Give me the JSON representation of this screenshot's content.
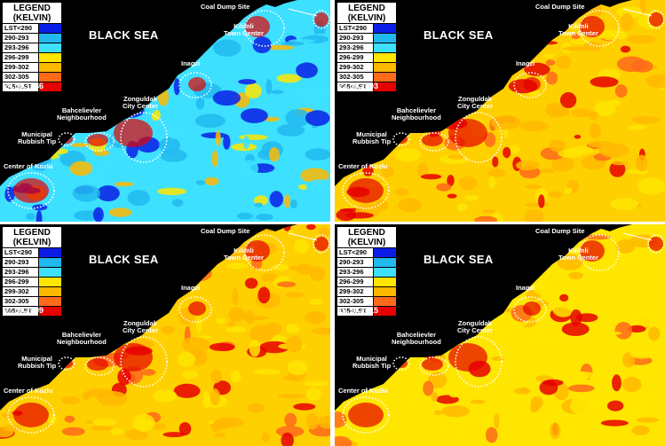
{
  "legend": {
    "title_line1": "LEGEND",
    "title_line2": "(KELVIN)",
    "classes": [
      {
        "label": "LST<290",
        "color": "#0a1ee6"
      },
      {
        "label": "290-293",
        "color": "#22b8f0"
      },
      {
        "label": "293-296",
        "color": "#3ee0ff"
      },
      {
        "label": "296-299",
        "color": "#ffe600"
      },
      {
        "label": "299-302",
        "color": "#ffb800"
      },
      {
        "label": "302-305",
        "color": "#ff6a1a"
      },
      {
        "label": "305<LST",
        "color": "#e60000"
      }
    ]
  },
  "sea_label": "BLACK SEA",
  "places": {
    "coal_dump": "Coal Dump Site",
    "kilimli_1": "Kilimli",
    "kilimli_2": "Town Center",
    "inagzi": "Inagzi",
    "zong_1": "Zonguldak",
    "zong_2": "City Center",
    "bahce_1": "Bahcelievler",
    "bahce_2": "Neighbourhood",
    "muni_1": "Municipal",
    "muni_2": "Rubbish Tip",
    "kozlu": "Center of Kozlu"
  },
  "panels": [
    {
      "date": "24.09.1986",
      "land_base": "#3ee0ff"
    },
    {
      "date": "23.09.2003",
      "land_base": "#ffd000"
    },
    {
      "date": "07.09.2009",
      "land_base": "#ffd000"
    },
    {
      "date": "10.10.2015",
      "land_base": "#ffe600"
    }
  ]
}
